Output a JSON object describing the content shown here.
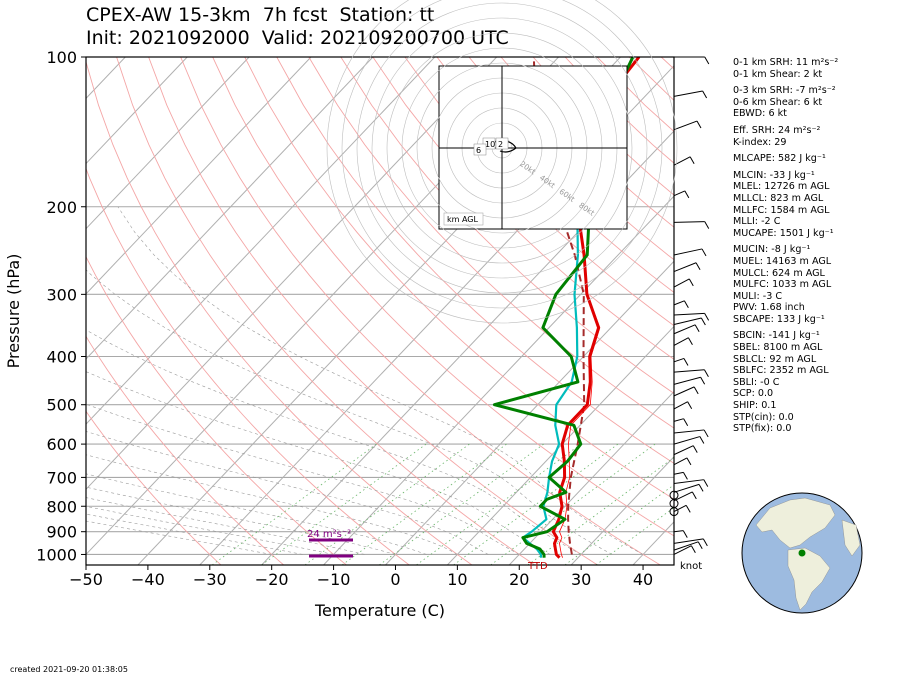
{
  "title_line1": "CPEX-AW 15-3km  7h fcst  Station: tt",
  "title_line2": "Init: 2021092000  Valid: 202109200700 UTC",
  "created": "created 2021-09-20 01:38:05",
  "colors": {
    "temp": "#e00000",
    "dewpoint": "#00bcbc",
    "virtual": "#ff0000",
    "parcel": "#a52a2a",
    "wetbulb": "#008000",
    "srh_bar": "#800080"
  },
  "chart_data": {
    "type": "line",
    "xlabel": "Temperature (C)",
    "ylabel": "Pressure (hPa)",
    "xlim": [
      -50,
      45
    ],
    "ylim": [
      1050,
      100
    ],
    "y_scale": "log",
    "xticks": [
      "−50",
      "−40",
      "−30",
      "−20",
      "−10",
      "0",
      "10",
      "20",
      "30",
      "40"
    ],
    "yticks": [
      "100",
      "200",
      "300",
      "400",
      "500",
      "600",
      "700",
      "800",
      "900",
      "1000"
    ],
    "barb_unit_label": "knot",
    "srh_label": "24 m²s⁻²",
    "surface_label": "TTD",
    "series": [
      {
        "key": "temp",
        "points": [
          [
            1015,
            27
          ],
          [
            1000,
            26
          ],
          [
            975,
            25
          ],
          [
            950,
            24
          ],
          [
            925,
            23.5
          ],
          [
            900,
            22
          ],
          [
            850,
            21
          ],
          [
            800,
            19.5
          ],
          [
            750,
            17
          ],
          [
            700,
            15.5
          ],
          [
            650,
            13
          ],
          [
            600,
            10
          ],
          [
            550,
            8
          ],
          [
            500,
            8
          ],
          [
            450,
            5
          ],
          [
            400,
            1
          ],
          [
            350,
            -2
          ],
          [
            300,
            -9
          ],
          [
            250,
            -15.5
          ],
          [
            200,
            -24
          ],
          [
            150,
            -33
          ],
          [
            120,
            -36
          ],
          [
            100,
            -37
          ]
        ]
      },
      {
        "key": "dewpoint",
        "points": [
          [
            1015,
            24
          ],
          [
            1000,
            23.5
          ],
          [
            975,
            22
          ],
          [
            950,
            20
          ],
          [
            925,
            18
          ],
          [
            900,
            18.5
          ],
          [
            850,
            19
          ],
          [
            800,
            16.5
          ],
          [
            750,
            15
          ],
          [
            700,
            13
          ],
          [
            650,
            11
          ],
          [
            600,
            9.5
          ],
          [
            550,
            6
          ],
          [
            500,
            3
          ],
          [
            450,
            2
          ],
          [
            400,
            -1
          ],
          [
            350,
            -5.5
          ],
          [
            300,
            -11
          ],
          [
            250,
            -16.5
          ],
          [
            200,
            -24
          ],
          [
            150,
            -33
          ],
          [
            120,
            -36
          ],
          [
            100,
            -37
          ]
        ]
      },
      {
        "key": "virtual",
        "points": [
          [
            1015,
            27.5
          ],
          [
            1000,
            26.8
          ],
          [
            975,
            25.8
          ],
          [
            950,
            24.8
          ],
          [
            925,
            24.3
          ],
          [
            900,
            23
          ],
          [
            850,
            22
          ],
          [
            800,
            20.3
          ],
          [
            750,
            18
          ],
          [
            700,
            16.3
          ],
          [
            650,
            13.8
          ],
          [
            600,
            11
          ],
          [
            550,
            8.5
          ],
          [
            500,
            8.5
          ],
          [
            450,
            5.3
          ],
          [
            400,
            1.2
          ],
          [
            350,
            -1.8
          ],
          [
            300,
            -8.9
          ],
          [
            250,
            -15.4
          ],
          [
            200,
            -24
          ],
          [
            150,
            -33
          ],
          [
            120,
            -36
          ],
          [
            100,
            -37
          ]
        ]
      },
      {
        "key": "parcel",
        "points": [
          [
            1000,
            28.5
          ],
          [
            950,
            26.5
          ],
          [
            900,
            24.5
          ],
          [
            850,
            22.5
          ],
          [
            800,
            20.5
          ],
          [
            700,
            16.5
          ],
          [
            600,
            12.5
          ],
          [
            500,
            7.5
          ],
          [
            400,
            0
          ],
          [
            300,
            -9.5
          ],
          [
            250,
            -17
          ],
          [
            200,
            -27
          ],
          [
            150,
            -40
          ],
          [
            100,
            -54
          ]
        ]
      },
      {
        "key": "wetbulb",
        "points": [
          [
            1015,
            24.5
          ],
          [
            1000,
            24
          ],
          [
            975,
            22.5
          ],
          [
            950,
            19.5
          ],
          [
            925,
            18
          ],
          [
            900,
            21
          ],
          [
            850,
            22
          ],
          [
            800,
            16
          ],
          [
            775,
            16
          ],
          [
            750,
            18
          ],
          [
            700,
            13
          ],
          [
            650,
            13.5
          ],
          [
            600,
            13
          ],
          [
            550,
            9
          ],
          [
            500,
            -7
          ],
          [
            450,
            3
          ],
          [
            400,
            -2
          ],
          [
            350,
            -11
          ],
          [
            300,
            -14
          ],
          [
            250,
            -15
          ],
          [
            200,
            -22
          ],
          [
            150,
            -30
          ],
          [
            120,
            -35
          ],
          [
            100,
            -38
          ]
        ]
      }
    ]
  },
  "hodograph": {
    "label": "km AGL",
    "rings": [
      "20kt",
      "40kt",
      "60kt",
      "80kt"
    ],
    "height_labels": [
      "10",
      "6",
      "2"
    ]
  },
  "indices": [
    "0-1 km SRH: 11 m²s⁻²",
    "0-1 km Shear: 2 kt",
    "",
    "0-3 km SRH: -7 m²s⁻²",
    "0-6 km Shear: 6 kt",
    "EBWD: 6 kt",
    "",
    "Eff. SRH: 24 m²s⁻²",
    "K-index: 29",
    "",
    "MLCAPE: 582 J kg⁻¹",
    "",
    "MLCIN: -33 J kg⁻¹",
    "MLEL: 12726 m AGL",
    "MLLCL: 823 m AGL",
    "MLLFC: 1584 m AGL",
    "MLLI: -2 C",
    "MUCAPE: 1501 J kg⁻¹",
    "",
    "MUCIN: -8 J kg⁻¹",
    "MUEL: 14163 m AGL",
    "MULCL: 624 m AGL",
    "MULFC: 1033 m AGL",
    "MULI: -3 C",
    "PWV: 1.68 inch",
    "SBCAPE: 133 J kg⁻¹",
    "",
    "SBCIN: -141 J kg⁻¹",
    "SBEL: 8100 m AGL",
    "SBLCL: 92 m AGL",
    "SBLFC: 2352 m AGL",
    "SBLI: -0 C",
    "SCP: 0.0",
    "SHIP: 0.1",
    "STP(cin): 0.0",
    "STP(fix): 0.0"
  ]
}
